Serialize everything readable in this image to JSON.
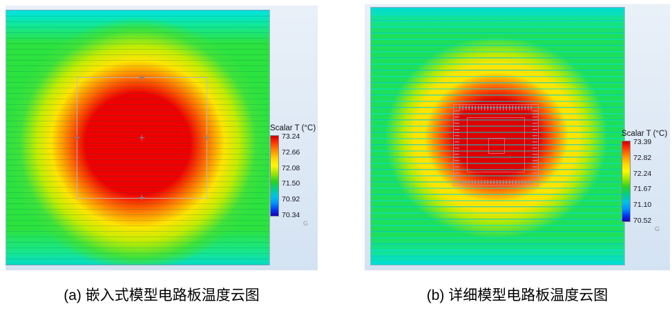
{
  "figure": {
    "panels": [
      {
        "caption": "(a) 嵌入式模型电路板温度云图",
        "legend": {
          "title": "Scalar T (°C)",
          "ticks": [
            "73.24",
            "72.66",
            "72.08",
            "71.50",
            "70.92",
            "70.34"
          ]
        },
        "axis_marker": "G"
      },
      {
        "caption": "(b) 详细模型电路板温度云图",
        "legend": {
          "title": "Scalar T (°C)",
          "ticks": [
            "73.39",
            "72.82",
            "72.24",
            "71.67",
            "71.10",
            "70.52"
          ]
        },
        "axis_marker": "G"
      }
    ]
  },
  "markers": {
    "cross": "+"
  },
  "colors": {
    "hot": "#ee0000",
    "warm": "#ff7300",
    "mid": "#ffe400",
    "cool": "#2ce23e",
    "cold_edge": "#00e2e2",
    "legend_blue": "#1a00b0",
    "viewport_bg": "#d4e3f2"
  },
  "chart_data": [
    {
      "type": "heatmap",
      "title": "(a) 嵌入式模型电路板温度云图",
      "legend_title": "Scalar T (°C)",
      "unit": "°C",
      "scale_ticks": [
        73.24,
        72.66,
        72.08,
        71.5,
        70.92,
        70.34
      ],
      "value_range": [
        70.34,
        73.24
      ],
      "colormap_order": [
        "red",
        "orange",
        "yellow",
        "green",
        "cyan",
        "blue"
      ],
      "legend_position": "right",
      "pattern": "Radial hot spot at board center (~73.2 °C over embedded chip footprint, red core ~ max 73.24) decaying through orange/yellow rings to green (~71.5) across the board; cyan (~70.3-70.9) along top and bottom board edges; horizontal PCB trace lines span the board; gray chip footprint square with + reference marks at center and edge midpoints."
    },
    {
      "type": "heatmap",
      "title": "(b) 详细模型电路板温度云图",
      "legend_title": "Scalar T (°C)",
      "unit": "°C",
      "scale_ticks": [
        73.39,
        72.82,
        72.24,
        71.67,
        71.1,
        70.52
      ],
      "value_range": [
        70.52,
        73.39
      ],
      "colormap_order": [
        "red",
        "orange",
        "yellow",
        "green",
        "cyan",
        "blue"
      ],
      "legend_position": "right",
      "pattern": "Radial hot spot centered on detailed QFP package outline with perimeter pins (~73.39 °C at die, red core) with broad yellow ring, decaying to green/cyan (~70.5-71.7) toward board edges; dense horizontal cyan trace striping across the board."
    }
  ]
}
